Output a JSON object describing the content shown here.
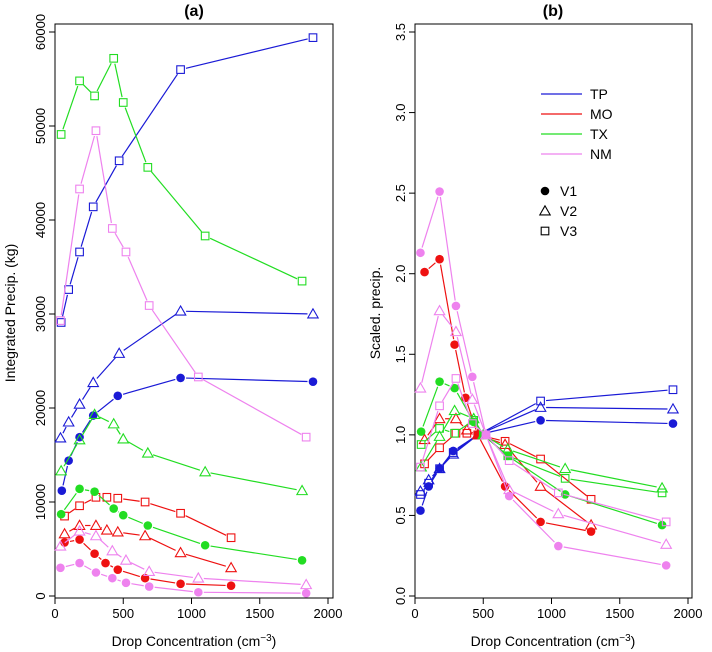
{
  "chart_data": [
    {
      "type": "line",
      "title": "(a)",
      "xlabel": "Drop Concentration (cm",
      "xlabel_sup": "−3",
      "xlabel_end": ")",
      "ylabel": "Integrated Precip. (kg)",
      "xlim": [
        0,
        2000
      ],
      "ylim": [
        0,
        60000
      ],
      "xticks": [
        0,
        500,
        1000,
        1500,
        2000
      ],
      "yticks": [
        0,
        10000,
        20000,
        30000,
        40000,
        50000,
        60000
      ],
      "grid": false,
      "series": [
        {
          "region": "TP",
          "version": "V1",
          "color": "#1a1ad6",
          "points": [
            [
              50,
              11200
            ],
            [
              100,
              14400
            ],
            [
              180,
              16900
            ],
            [
              280,
              19200
            ],
            [
              460,
              21300
            ],
            [
              920,
              23200
            ],
            [
              1890,
              22800
            ]
          ]
        },
        {
          "region": "TP",
          "version": "V2",
          "color": "#1a1ad6",
          "points": [
            [
              40,
              16800
            ],
            [
              100,
              18500
            ],
            [
              180,
              20400
            ],
            [
              280,
              22700
            ],
            [
              470,
              25800
            ],
            [
              920,
              30300
            ],
            [
              1890,
              30000
            ]
          ]
        },
        {
          "region": "TP",
          "version": "V3",
          "color": "#1a1ad6",
          "points": [
            [
              45,
              29100
            ],
            [
              100,
              32600
            ],
            [
              180,
              36600
            ],
            [
              280,
              41400
            ],
            [
              470,
              46300
            ],
            [
              920,
              56000
            ],
            [
              1890,
              59400
            ]
          ]
        },
        {
          "region": "MO",
          "version": "V1",
          "color": "#ee1111",
          "points": [
            [
              70,
              5700
            ],
            [
              180,
              6000
            ],
            [
              290,
              4500
            ],
            [
              370,
              3500
            ],
            [
              460,
              2800
            ],
            [
              660,
              1900
            ],
            [
              920,
              1300
            ],
            [
              1290,
              1100
            ]
          ]
        },
        {
          "region": "MO",
          "version": "V2",
          "color": "#ee1111",
          "points": [
            [
              70,
              6600
            ],
            [
              180,
              7500
            ],
            [
              300,
              7500
            ],
            [
              380,
              7000
            ],
            [
              460,
              6800
            ],
            [
              660,
              6400
            ],
            [
              920,
              4600
            ],
            [
              1290,
              3000
            ]
          ]
        },
        {
          "region": "MO",
          "version": "V3",
          "color": "#ee1111",
          "points": [
            [
              70,
              8500
            ],
            [
              180,
              9600
            ],
            [
              300,
              10500
            ],
            [
              380,
              10500
            ],
            [
              460,
              10400
            ],
            [
              660,
              10000
            ],
            [
              920,
              8800
            ],
            [
              1290,
              6200
            ]
          ]
        },
        {
          "region": "TX",
          "version": "V1",
          "color": "#22dd22",
          "points": [
            [
              45,
              8700
            ],
            [
              180,
              11400
            ],
            [
              290,
              11100
            ],
            [
              430,
              9300
            ],
            [
              500,
              8600
            ],
            [
              680,
              7500
            ],
            [
              1100,
              5400
            ],
            [
              1810,
              3800
            ]
          ]
        },
        {
          "region": "TX",
          "version": "V2",
          "color": "#22dd22",
          "points": [
            [
              45,
              13300
            ],
            [
              180,
              16600
            ],
            [
              290,
              19300
            ],
            [
              430,
              18300
            ],
            [
              500,
              16700
            ],
            [
              680,
              15200
            ],
            [
              1100,
              13200
            ],
            [
              1810,
              11200
            ]
          ]
        },
        {
          "region": "TX",
          "version": "V3",
          "color": "#22dd22",
          "points": [
            [
              45,
              49100
            ],
            [
              180,
              54800
            ],
            [
              290,
              53200
            ],
            [
              430,
              57200
            ],
            [
              500,
              52500
            ],
            [
              680,
              45600
            ],
            [
              1100,
              38300
            ],
            [
              1810,
              33500
            ]
          ]
        },
        {
          "region": "NM",
          "version": "V1",
          "color": "#ee82ee",
          "points": [
            [
              40,
              3000
            ],
            [
              180,
              3500
            ],
            [
              300,
              2500
            ],
            [
              420,
              1900
            ],
            [
              520,
              1400
            ],
            [
              690,
              1000
            ],
            [
              1050,
              400
            ],
            [
              1840,
              300
            ]
          ]
        },
        {
          "region": "NM",
          "version": "V2",
          "color": "#ee82ee",
          "points": [
            [
              40,
              5300
            ],
            [
              180,
              6900
            ],
            [
              300,
              6400
            ],
            [
              420,
              4800
            ],
            [
              520,
              3800
            ],
            [
              690,
              2600
            ],
            [
              1050,
              1900
            ],
            [
              1840,
              1200
            ]
          ]
        },
        {
          "region": "NM",
          "version": "V3",
          "color": "#ee82ee",
          "points": [
            [
              40,
              29300
            ],
            [
              180,
              43300
            ],
            [
              300,
              49500
            ],
            [
              420,
              39100
            ],
            [
              520,
              36600
            ],
            [
              690,
              30900
            ],
            [
              1050,
              23300
            ],
            [
              1840,
              16900
            ]
          ]
        }
      ]
    },
    {
      "type": "line",
      "title": "(b)",
      "xlabel": "Drop Concentration (cm",
      "xlabel_sup": "−3",
      "xlabel_end": ")",
      "ylabel": "Scaled. precip.",
      "xlim": [
        0,
        2000
      ],
      "ylim": [
        0,
        3.5
      ],
      "xticks": [
        0,
        500,
        1000,
        1500,
        2000
      ],
      "yticks": [
        0,
        0.5,
        1.0,
        1.5,
        2.0,
        2.5,
        3.0,
        3.5
      ],
      "ytick_labels": [
        "0.0",
        "0.5",
        "1.0",
        "1.5",
        "2.0",
        "2.5",
        "3.0",
        "3.5"
      ],
      "grid": false,
      "series": [
        {
          "region": "TP",
          "version": "V1",
          "color": "#1a1ad6",
          "points": [
            [
              40,
              0.53
            ],
            [
              100,
              0.68
            ],
            [
              180,
              0.79
            ],
            [
              280,
              0.9
            ],
            [
              460,
              1.0
            ],
            [
              920,
              1.09
            ],
            [
              1890,
              1.07
            ]
          ]
        },
        {
          "region": "TP",
          "version": "V2",
          "color": "#1a1ad6",
          "points": [
            [
              40,
              0.65
            ],
            [
              100,
              0.72
            ],
            [
              180,
              0.79
            ],
            [
              280,
              0.88
            ],
            [
              460,
              1.0
            ],
            [
              920,
              1.17
            ],
            [
              1890,
              1.16
            ]
          ]
        },
        {
          "region": "TP",
          "version": "V3",
          "color": "#1a1ad6",
          "points": [
            [
              40,
              0.63
            ],
            [
              100,
              0.7
            ],
            [
              180,
              0.79
            ],
            [
              280,
              0.89
            ],
            [
              460,
              1.0
            ],
            [
              920,
              1.21
            ],
            [
              1890,
              1.28
            ]
          ]
        },
        {
          "region": "MO",
          "version": "V1",
          "color": "#ee1111",
          "points": [
            [
              70,
              2.01
            ],
            [
              180,
              2.09
            ],
            [
              290,
              1.56
            ],
            [
              370,
              1.23
            ],
            [
              460,
              1.0
            ],
            [
              660,
              0.68
            ],
            [
              920,
              0.46
            ],
            [
              1290,
              0.4
            ]
          ]
        },
        {
          "region": "MO",
          "version": "V2",
          "color": "#ee1111",
          "points": [
            [
              70,
              0.97
            ],
            [
              180,
              1.1
            ],
            [
              300,
              1.1
            ],
            [
              380,
              1.03
            ],
            [
              460,
              1.0
            ],
            [
              660,
              0.94
            ],
            [
              920,
              0.68
            ],
            [
              1290,
              0.44
            ]
          ]
        },
        {
          "region": "MO",
          "version": "V3",
          "color": "#ee1111",
          "points": [
            [
              70,
              0.82
            ],
            [
              180,
              0.92
            ],
            [
              300,
              1.01
            ],
            [
              380,
              1.01
            ],
            [
              460,
              1.0
            ],
            [
              660,
              0.96
            ],
            [
              920,
              0.85
            ],
            [
              1290,
              0.6
            ]
          ]
        },
        {
          "region": "TX",
          "version": "V1",
          "color": "#22dd22",
          "points": [
            [
              45,
              1.02
            ],
            [
              180,
              1.33
            ],
            [
              290,
              1.29
            ],
            [
              430,
              1.08
            ],
            [
              500,
              1.0
            ],
            [
              680,
              0.87
            ],
            [
              1100,
              0.63
            ],
            [
              1810,
              0.44
            ]
          ]
        },
        {
          "region": "TX",
          "version": "V2",
          "color": "#22dd22",
          "points": [
            [
              45,
              0.8
            ],
            [
              180,
              0.99
            ],
            [
              290,
              1.15
            ],
            [
              430,
              1.1
            ],
            [
              500,
              1.0
            ],
            [
              680,
              0.91
            ],
            [
              1100,
              0.79
            ],
            [
              1810,
              0.67
            ]
          ]
        },
        {
          "region": "TX",
          "version": "V3",
          "color": "#22dd22",
          "points": [
            [
              45,
              0.94
            ],
            [
              180,
              1.04
            ],
            [
              290,
              1.01
            ],
            [
              430,
              1.09
            ],
            [
              500,
              1.0
            ],
            [
              680,
              0.87
            ],
            [
              1100,
              0.73
            ],
            [
              1810,
              0.64
            ]
          ]
        },
        {
          "region": "NM",
          "version": "V1",
          "color": "#ee82ee",
          "points": [
            [
              40,
              2.13
            ],
            [
              180,
              2.51
            ],
            [
              300,
              1.8
            ],
            [
              420,
              1.36
            ],
            [
              520,
              1.0
            ],
            [
              690,
              0.62
            ],
            [
              1050,
              0.31
            ],
            [
              1840,
              0.19
            ]
          ]
        },
        {
          "region": "NM",
          "version": "V2",
          "color": "#ee82ee",
          "points": [
            [
              40,
              1.29
            ],
            [
              180,
              1.77
            ],
            [
              300,
              1.64
            ],
            [
              420,
              1.22
            ],
            [
              520,
              1.0
            ],
            [
              690,
              0.66
            ],
            [
              1050,
              0.51
            ],
            [
              1840,
              0.32
            ]
          ]
        },
        {
          "region": "NM",
          "version": "V3",
          "color": "#ee82ee",
          "points": [
            [
              40,
              0.8
            ],
            [
              180,
              1.18
            ],
            [
              300,
              1.35
            ],
            [
              420,
              1.07
            ],
            [
              520,
              1.0
            ],
            [
              690,
              0.84
            ],
            [
              1050,
              0.64
            ],
            [
              1840,
              0.46
            ]
          ]
        }
      ],
      "legend": {
        "placement": "top-right",
        "regions": [
          {
            "name": "TP",
            "color": "#1a1ad6"
          },
          {
            "name": "MO",
            "color": "#ee1111"
          },
          {
            "name": "TX",
            "color": "#22dd22"
          },
          {
            "name": "NM",
            "color": "#ee82ee"
          }
        ],
        "versions": [
          {
            "name": "V1",
            "marker": "filled-circle"
          },
          {
            "name": "V2",
            "marker": "open-triangle"
          },
          {
            "name": "V3",
            "marker": "open-square"
          }
        ]
      }
    }
  ]
}
